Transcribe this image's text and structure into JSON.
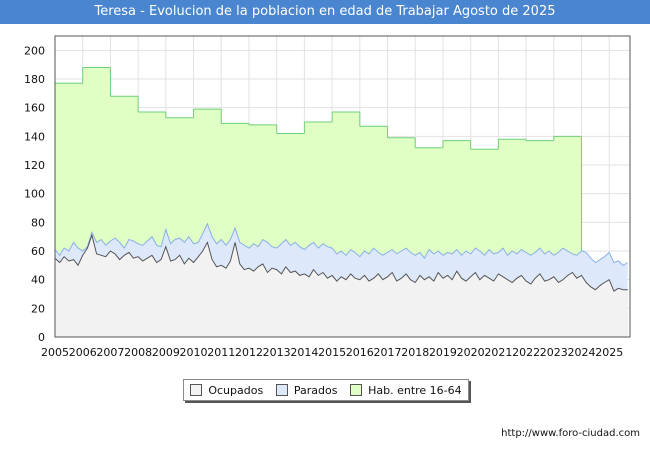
{
  "chart_data": {
    "type": "area",
    "title": "Teresa - Evolucion de la poblacion en edad de Trabajar Agosto de 2025",
    "xlabel": "",
    "ylabel": "",
    "ylim": [
      0,
      210
    ],
    "xlim": [
      2005,
      2025.75
    ],
    "y_ticks": [
      0,
      20,
      40,
      60,
      80,
      100,
      120,
      140,
      160,
      180,
      200
    ],
    "x_ticks": [
      "2005",
      "2006",
      "2007",
      "2008",
      "2009",
      "2010",
      "2011",
      "2012",
      "2013",
      "2014",
      "2015",
      "2016",
      "2017",
      "2018",
      "2019",
      "2020",
      "2021",
      "2022",
      "2023",
      "2024",
      "2025"
    ],
    "grid": true,
    "legend_position": "bottom",
    "colors": {
      "ocupados_fill": "#f2f2f2",
      "parados_fill": "#dde9fb",
      "hab_fill": "#dfffc4",
      "ocupados_line": "#555555",
      "parados_line": "#89b0e8",
      "hab_line": "#6fcf7a"
    },
    "series": [
      {
        "name": "Hab. entre 16-64",
        "type": "step",
        "x": [
          2005,
          2006,
          2007,
          2008,
          2009,
          2010,
          2011,
          2012,
          2013,
          2014,
          2015,
          2016,
          2017,
          2018,
          2019,
          2020,
          2021,
          2022,
          2023,
          2024
        ],
        "values": [
          177,
          188,
          168,
          157,
          153,
          159,
          149,
          148,
          142,
          150,
          157,
          147,
          139,
          132,
          137,
          131,
          138,
          137,
          140,
          null
        ]
      },
      {
        "name": "Parados",
        "type": "line",
        "x": [
          2005,
          2005.17,
          2005.33,
          2005.5,
          2005.67,
          2005.83,
          2006,
          2006.17,
          2006.33,
          2006.5,
          2006.67,
          2006.83,
          2007,
          2007.17,
          2007.33,
          2007.5,
          2007.67,
          2007.83,
          2008,
          2008.17,
          2008.33,
          2008.5,
          2008.67,
          2008.83,
          2009,
          2009.17,
          2009.33,
          2009.5,
          2009.67,
          2009.83,
          2010,
          2010.17,
          2010.33,
          2010.5,
          2010.67,
          2010.83,
          2011,
          2011.17,
          2011.33,
          2011.5,
          2011.67,
          2011.83,
          2012,
          2012.17,
          2012.33,
          2012.5,
          2012.67,
          2012.83,
          2013,
          2013.17,
          2013.33,
          2013.5,
          2013.67,
          2013.83,
          2014,
          2014.17,
          2014.33,
          2014.5,
          2014.67,
          2014.83,
          2015,
          2015.17,
          2015.33,
          2015.5,
          2015.67,
          2015.83,
          2016,
          2016.17,
          2016.33,
          2016.5,
          2016.67,
          2016.83,
          2017,
          2017.17,
          2017.33,
          2017.5,
          2017.67,
          2017.83,
          2018,
          2018.17,
          2018.33,
          2018.5,
          2018.67,
          2018.83,
          2019,
          2019.17,
          2019.33,
          2019.5,
          2019.67,
          2019.83,
          2020,
          2020.17,
          2020.33,
          2020.5,
          2020.67,
          2020.83,
          2021,
          2021.17,
          2021.33,
          2021.5,
          2021.67,
          2021.83,
          2022,
          2022.17,
          2022.33,
          2022.5,
          2022.67,
          2022.83,
          2023,
          2023.17,
          2023.33,
          2023.5,
          2023.67,
          2023.83,
          2024,
          2024.17,
          2024.33,
          2024.5,
          2024.67,
          2024.83,
          2025,
          2025.17,
          2025.33,
          2025.5,
          2025.67
        ],
        "values": [
          61,
          57,
          62,
          60,
          66,
          62,
          60,
          63,
          73,
          66,
          68,
          64,
          67,
          69,
          66,
          62,
          68,
          67,
          65,
          64,
          67,
          70,
          64,
          63,
          75,
          65,
          68,
          69,
          66,
          70,
          65,
          66,
          72,
          79,
          70,
          65,
          68,
          64,
          68,
          76,
          66,
          64,
          62,
          65,
          63,
          68,
          66,
          63,
          62,
          65,
          68,
          64,
          66,
          63,
          61,
          64,
          66,
          62,
          65,
          63,
          62,
          58,
          60,
          57,
          61,
          59,
          56,
          60,
          58,
          62,
          59,
          57,
          59,
          61,
          58,
          60,
          62,
          59,
          57,
          59,
          55,
          61,
          58,
          60,
          57,
          59,
          58,
          61,
          57,
          60,
          58,
          62,
          60,
          57,
          61,
          58,
          59,
          62,
          57,
          60,
          58,
          61,
          59,
          57,
          59,
          62,
          58,
          60,
          57,
          59,
          62,
          60,
          58,
          57,
          60,
          59,
          55,
          52,
          54,
          56,
          59,
          52,
          53,
          50,
          52
        ]
      },
      {
        "name": "Ocupados",
        "type": "line",
        "x": [
          2005,
          2005.17,
          2005.33,
          2005.5,
          2005.67,
          2005.83,
          2006,
          2006.17,
          2006.33,
          2006.5,
          2006.67,
          2006.83,
          2007,
          2007.17,
          2007.33,
          2007.5,
          2007.67,
          2007.83,
          2008,
          2008.17,
          2008.33,
          2008.5,
          2008.67,
          2008.83,
          2009,
          2009.17,
          2009.33,
          2009.5,
          2009.67,
          2009.83,
          2010,
          2010.17,
          2010.33,
          2010.5,
          2010.67,
          2010.83,
          2011,
          2011.17,
          2011.33,
          2011.5,
          2011.67,
          2011.83,
          2012,
          2012.17,
          2012.33,
          2012.5,
          2012.67,
          2012.83,
          2013,
          2013.17,
          2013.33,
          2013.5,
          2013.67,
          2013.83,
          2014,
          2014.17,
          2014.33,
          2014.5,
          2014.67,
          2014.83,
          2015,
          2015.17,
          2015.33,
          2015.5,
          2015.67,
          2015.83,
          2016,
          2016.17,
          2016.33,
          2016.5,
          2016.67,
          2016.83,
          2017,
          2017.17,
          2017.33,
          2017.5,
          2017.67,
          2017.83,
          2018,
          2018.17,
          2018.33,
          2018.5,
          2018.67,
          2018.83,
          2019,
          2019.17,
          2019.33,
          2019.5,
          2019.67,
          2019.83,
          2020,
          2020.17,
          2020.33,
          2020.5,
          2020.67,
          2020.83,
          2021,
          2021.17,
          2021.33,
          2021.5,
          2021.67,
          2021.83,
          2022,
          2022.17,
          2022.33,
          2022.5,
          2022.67,
          2022.83,
          2023,
          2023.17,
          2023.33,
          2023.5,
          2023.67,
          2023.83,
          2024,
          2024.17,
          2024.33,
          2024.5,
          2024.67,
          2024.83,
          2025,
          2025.17,
          2025.33,
          2025.5,
          2025.67
        ],
        "values": [
          55,
          52,
          56,
          53,
          54,
          50,
          57,
          62,
          71,
          58,
          57,
          56,
          60,
          58,
          54,
          57,
          59,
          55,
          56,
          53,
          55,
          57,
          52,
          54,
          63,
          53,
          54,
          57,
          51,
          55,
          52,
          56,
          60,
          66,
          54,
          49,
          50,
          48,
          53,
          66,
          51,
          47,
          48,
          46,
          49,
          51,
          45,
          48,
          47,
          44,
          49,
          45,
          46,
          43,
          44,
          42,
          47,
          43,
          45,
          41,
          43,
          39,
          42,
          40,
          44,
          41,
          40,
          43,
          39,
          41,
          44,
          40,
          42,
          45,
          39,
          41,
          44,
          40,
          38,
          43,
          40,
          42,
          39,
          45,
          41,
          43,
          40,
          46,
          41,
          39,
          42,
          45,
          40,
          43,
          41,
          39,
          44,
          42,
          40,
          38,
          41,
          43,
          39,
          37,
          41,
          44,
          39,
          40,
          42,
          38,
          40,
          43,
          45,
          41,
          43,
          38,
          35,
          33,
          36,
          38,
          40,
          32,
          34,
          33,
          33
        ]
      }
    ]
  },
  "legend": {
    "items": [
      {
        "label": "Ocupados",
        "color": "#f2f2f2"
      },
      {
        "label": "Parados",
        "color": "#dde9fb"
      },
      {
        "label": "Hab. entre 16-64",
        "color": "#dfffc4"
      }
    ]
  },
  "footer": {
    "source": "http://www.foro-ciudad.com"
  }
}
